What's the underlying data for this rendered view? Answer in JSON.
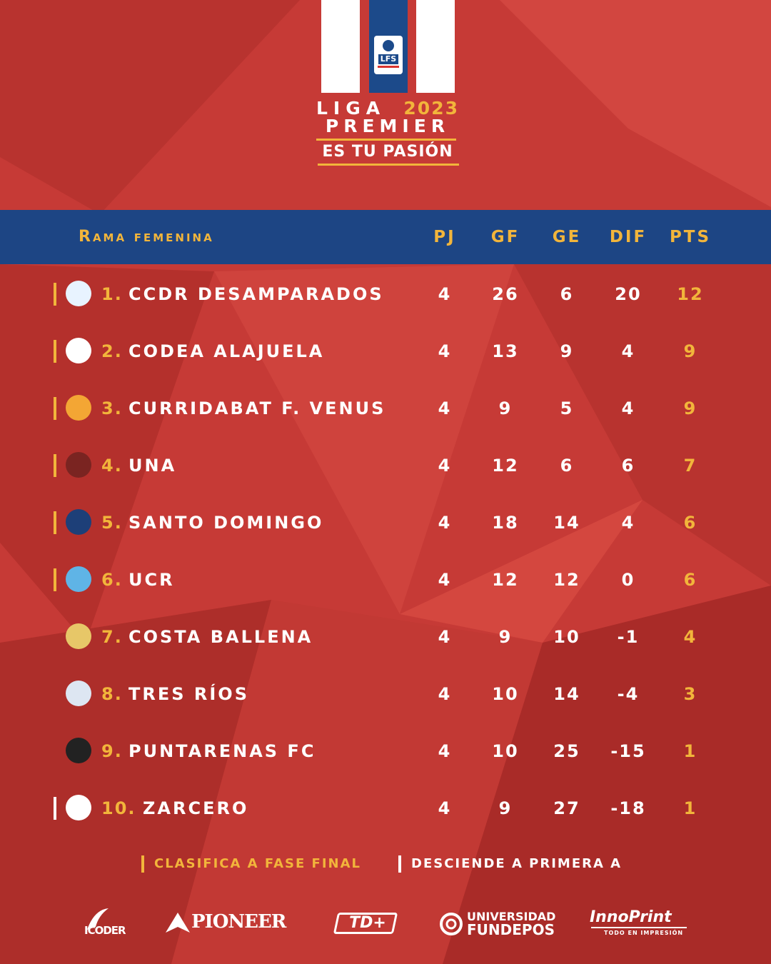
{
  "header": {
    "liga": "LIGA",
    "year": "2023",
    "premier": "PREMIER",
    "tagline": "ES TU PASIÓN",
    "badge_text": "LFS"
  },
  "table": {
    "section_title": "Rama femenina",
    "columns": [
      "PJ",
      "GF",
      "GE",
      "DIF",
      "PTS"
    ],
    "rows": [
      {
        "pos": "1.",
        "team": "CCDR DESAMPARADOS",
        "pj": "4",
        "gf": "26",
        "ge": "6",
        "dif": "20",
        "pts": "12",
        "mark": "gold"
      },
      {
        "pos": "2.",
        "team": "CODEA ALAJUELA",
        "pj": "4",
        "gf": "13",
        "ge": "9",
        "dif": "4",
        "pts": "9",
        "mark": "gold"
      },
      {
        "pos": "3.",
        "team": "CURRIDABAT F. VENUS",
        "pj": "4",
        "gf": "9",
        "ge": "5",
        "dif": "4",
        "pts": "9",
        "mark": "gold"
      },
      {
        "pos": "4.",
        "team": "UNA",
        "pj": "4",
        "gf": "12",
        "ge": "6",
        "dif": "6",
        "pts": "7",
        "mark": "gold"
      },
      {
        "pos": "5.",
        "team": "SANTO DOMINGO",
        "pj": "4",
        "gf": "18",
        "ge": "14",
        "dif": "4",
        "pts": "6",
        "mark": "gold"
      },
      {
        "pos": "6.",
        "team": "UCR",
        "pj": "4",
        "gf": "12",
        "ge": "12",
        "dif": "0",
        "pts": "6",
        "mark": "gold"
      },
      {
        "pos": "7.",
        "team": "COSTA BALLENA",
        "pj": "4",
        "gf": "9",
        "ge": "10",
        "dif": "-1",
        "pts": "4",
        "mark": "none"
      },
      {
        "pos": "8.",
        "team": "TRES RÍOS",
        "pj": "4",
        "gf": "10",
        "ge": "14",
        "dif": "-4",
        "pts": "3",
        "mark": "none"
      },
      {
        "pos": "9.",
        "team": "PUNTARENAS FC",
        "pj": "4",
        "gf": "10",
        "ge": "25",
        "dif": "-15",
        "pts": "1",
        "mark": "none"
      },
      {
        "pos": "10.",
        "team": "ZARCERO",
        "pj": "4",
        "gf": "9",
        "ge": "27",
        "dif": "-18",
        "pts": "1",
        "mark": "white"
      }
    ]
  },
  "legend": {
    "qualify": "CLASIFICA A FASE FINAL",
    "relegate": "DESCIENDE A PRIMERA A"
  },
  "sponsors": {
    "icoder": "ICODER",
    "pioneer": "PIONEER",
    "td": "TD+",
    "fundepos_top": "UNIVERSIDAD",
    "fundepos_bottom": "FUNDEPOS",
    "innoprint": "InnoPrint",
    "innoprint_sub": "TODO EN IMPRESIÓN"
  },
  "colors": {
    "background": "#c63a36",
    "navy": "#1d4584",
    "gold": "#f2b53b",
    "white": "#ffffff"
  }
}
